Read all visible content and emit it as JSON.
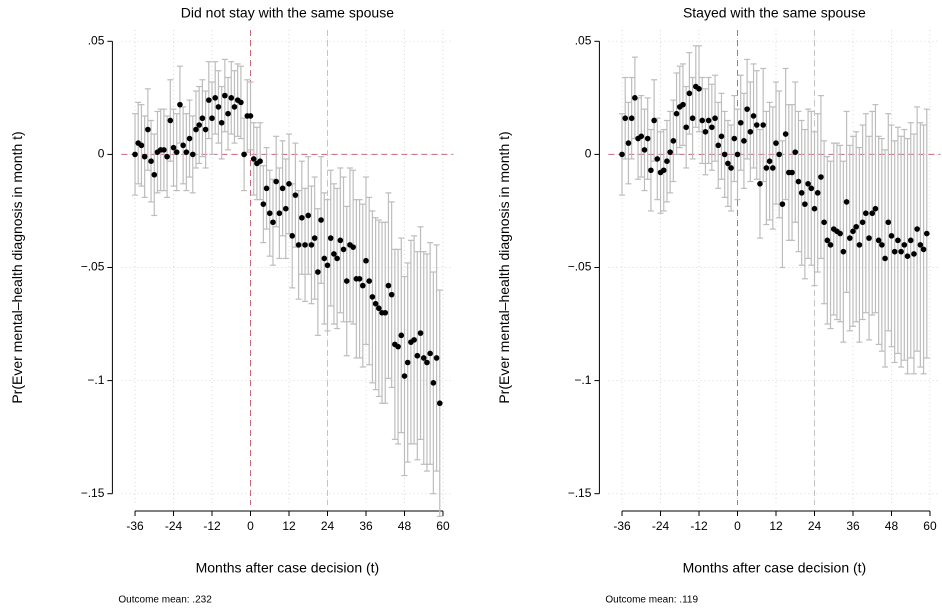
{
  "chart_data": [
    {
      "type": "errorbar",
      "title": "Did not stay with the same spouse",
      "xlabel": "Months after case decision (t)",
      "ylabel": "Pr(Ever mental–health diagnosis in month t)",
      "note": "Outcome mean: .232",
      "xlim": [
        -39,
        62
      ],
      "xticks": [
        -36,
        -24,
        -12,
        0,
        12,
        24,
        36,
        48,
        60
      ],
      "ylim": [
        -0.155,
        0.055
      ],
      "yticks": [
        {
          "value": 0.05,
          "label": ".05"
        },
        0,
        {
          "value": -0.05,
          "label": "−.05"
        },
        {
          "value": -0.1,
          "label": "−.1"
        },
        {
          "value": -0.15,
          "label": "−.15"
        }
      ],
      "grid": true,
      "color": "#000000",
      "error_color": "#bdbdbd",
      "ref_lines": [
        {
          "axis": "x",
          "value": 0,
          "color": "#c8687a"
        },
        {
          "axis": "y",
          "value": 0,
          "color": "#c8687a"
        },
        {
          "axis": "x",
          "value": 24,
          "color": "#c4c4c4"
        }
      ],
      "x": [
        -36,
        -35,
        -34,
        -33,
        -32,
        -31,
        -30,
        -29,
        -28,
        -27,
        -26,
        -25,
        -24,
        -23,
        -22,
        -21,
        -20,
        -19,
        -18,
        -17,
        -16,
        -15,
        -14,
        -13,
        -12,
        -11,
        -10,
        -9,
        -8,
        -7,
        -6,
        -5,
        -4,
        -3,
        -2,
        -1,
        0,
        1,
        2,
        3,
        4,
        5,
        6,
        7,
        8,
        9,
        10,
        11,
        12,
        13,
        14,
        15,
        16,
        17,
        18,
        19,
        20,
        21,
        22,
        23,
        24,
        25,
        26,
        27,
        28,
        29,
        30,
        31,
        32,
        33,
        34,
        35,
        36,
        37,
        38,
        39,
        40,
        41,
        42,
        43,
        44,
        45,
        46,
        47,
        48,
        49,
        50,
        51,
        52,
        53,
        54,
        55,
        56,
        57,
        58,
        59
      ],
      "values": [
        0,
        0.005,
        0.004,
        -0.001,
        0.011,
        -0.003,
        -0.009,
        0.001,
        0.002,
        0.002,
        -0.001,
        0.015,
        0.003,
        0.001,
        0.022,
        0.004,
        0.001,
        0.007,
        0,
        0.011,
        0.013,
        0.016,
        0.011,
        0.024,
        0.016,
        0.025,
        0.021,
        0.014,
        0.026,
        0.018,
        0.025,
        0.021,
        0.024,
        0.023,
        0,
        0.017,
        0.017,
        -0.002,
        -0.004,
        -0.003,
        -0.022,
        -0.015,
        -0.026,
        -0.03,
        -0.012,
        -0.026,
        -0.015,
        -0.024,
        -0.013,
        -0.036,
        -0.018,
        -0.04,
        -0.028,
        -0.04,
        -0.027,
        -0.04,
        -0.037,
        -0.052,
        -0.029,
        -0.046,
        -0.049,
        -0.037,
        -0.044,
        -0.046,
        -0.038,
        -0.042,
        -0.056,
        -0.04,
        -0.041,
        -0.055,
        -0.055,
        -0.058,
        -0.047,
        -0.056,
        -0.063,
        -0.066,
        -0.068,
        -0.07,
        -0.07,
        -0.058,
        -0.062,
        -0.084,
        -0.085,
        -0.08,
        -0.098,
        -0.092,
        -0.083,
        -0.082,
        -0.089,
        -0.079,
        -0.09,
        -0.092,
        -0.088,
        -0.101,
        -0.09,
        -0.11
      ],
      "errors": [
        0.018,
        0.018,
        0.018,
        0.018,
        0.018,
        0.018,
        0.018,
        0.018,
        0.018,
        0.018,
        0.018,
        0.018,
        0.017,
        0.017,
        0.017,
        0.017,
        0.017,
        0.017,
        0.017,
        0.017,
        0.017,
        0.017,
        0.017,
        0.017,
        0.016,
        0.016,
        0.016,
        0.016,
        0.016,
        0.016,
        0.016,
        0.016,
        0.016,
        0.016,
        0.016,
        0.016,
        0.015,
        0.016,
        0.016,
        0.017,
        0.017,
        0.018,
        0.019,
        0.019,
        0.02,
        0.02,
        0.021,
        0.022,
        0.022,
        0.023,
        0.023,
        0.024,
        0.025,
        0.025,
        0.026,
        0.026,
        0.027,
        0.028,
        0.028,
        0.029,
        0.029,
        0.03,
        0.031,
        0.031,
        0.032,
        0.032,
        0.033,
        0.034,
        0.034,
        0.035,
        0.035,
        0.036,
        0.037,
        0.037,
        0.038,
        0.038,
        0.039,
        0.04,
        0.04,
        0.041,
        0.041,
        0.042,
        0.043,
        0.043,
        0.044,
        0.044,
        0.045,
        0.046,
        0.046,
        0.047,
        0.047,
        0.048,
        0.049,
        0.049,
        0.05,
        0.05
      ]
    },
    {
      "type": "errorbar",
      "title": "Stayed with the same spouse",
      "xlabel": "Months after case decision (t)",
      "ylabel": "Pr(Ever mental–health diagnosis in month t)",
      "note": "Outcome mean: .119",
      "xlim": [
        -39,
        62
      ],
      "xticks": [
        -36,
        -24,
        -12,
        0,
        12,
        24,
        36,
        48,
        60
      ],
      "ylim": [
        -0.155,
        0.055
      ],
      "yticks": [
        {
          "value": 0.05,
          "label": ".05"
        },
        0,
        {
          "value": -0.05,
          "label": "−.05"
        },
        {
          "value": -0.1,
          "label": "−.1"
        },
        {
          "value": -0.15,
          "label": "−.15"
        }
      ],
      "grid": true,
      "color": "#000000",
      "error_color": "#bdbdbd",
      "ref_lines": [
        {
          "axis": "x",
          "value": 0,
          "color": "#c8687a"
        },
        {
          "axis": "y",
          "value": 0,
          "color": "#c8687a"
        },
        {
          "axis": "x",
          "value": 24,
          "color": "#c4c4c4"
        }
      ],
      "x": [
        -36,
        -35,
        -34,
        -33,
        -32,
        -31,
        -30,
        -29,
        -28,
        -27,
        -26,
        -25,
        -24,
        -23,
        -22,
        -21,
        -20,
        -19,
        -18,
        -17,
        -16,
        -15,
        -14,
        -13,
        -12,
        -11,
        -10,
        -9,
        -8,
        -7,
        -6,
        -5,
        -4,
        -3,
        -2,
        -1,
        0,
        1,
        2,
        3,
        4,
        5,
        6,
        7,
        8,
        9,
        10,
        11,
        12,
        13,
        14,
        15,
        16,
        17,
        18,
        19,
        20,
        21,
        22,
        23,
        24,
        25,
        26,
        27,
        28,
        29,
        30,
        31,
        32,
        33,
        34,
        35,
        36,
        37,
        38,
        39,
        40,
        41,
        42,
        43,
        44,
        45,
        46,
        47,
        48,
        49,
        50,
        51,
        52,
        53,
        54,
        55,
        56,
        57,
        58,
        59
      ],
      "values": [
        0,
        0.016,
        0.005,
        0.016,
        0.025,
        0.007,
        0.008,
        0.002,
        0.007,
        -0.007,
        0.015,
        -0.002,
        -0.008,
        -0.007,
        -0.003,
        0.001,
        0.006,
        0.018,
        0.021,
        0.022,
        0.012,
        0.027,
        0.016,
        0.03,
        0.029,
        0.015,
        0.01,
        0.015,
        0.012,
        0.016,
        0.004,
        0.008,
        0,
        -0.004,
        -0.006,
        0.007,
        0,
        0.014,
        0.006,
        0.02,
        0.01,
        0.017,
        0.013,
        -0.013,
        0.013,
        -0.006,
        -0.003,
        -0.006,
        0.005,
        0,
        -0.022,
        0.009,
        -0.008,
        -0.008,
        0.001,
        -0.012,
        -0.017,
        -0.022,
        -0.013,
        -0.015,
        -0.024,
        -0.017,
        -0.01,
        -0.03,
        -0.038,
        -0.04,
        -0.033,
        -0.034,
        -0.035,
        -0.043,
        -0.021,
        -0.037,
        -0.034,
        -0.032,
        -0.04,
        -0.03,
        -0.026,
        -0.037,
        -0.026,
        -0.024,
        -0.038,
        -0.04,
        -0.046,
        -0.03,
        -0.036,
        -0.043,
        -0.038,
        -0.043,
        -0.04,
        -0.045,
        -0.038,
        -0.044,
        -0.033,
        -0.04,
        -0.042,
        -0.035
      ],
      "errors": [
        0.018,
        0.018,
        0.018,
        0.018,
        0.018,
        0.018,
        0.018,
        0.018,
        0.018,
        0.018,
        0.018,
        0.018,
        0.018,
        0.018,
        0.018,
        0.018,
        0.018,
        0.018,
        0.018,
        0.018,
        0.018,
        0.018,
        0.018,
        0.018,
        0.019,
        0.019,
        0.019,
        0.019,
        0.019,
        0.019,
        0.019,
        0.019,
        0.019,
        0.019,
        0.019,
        0.019,
        0.02,
        0.021,
        0.021,
        0.022,
        0.022,
        0.023,
        0.024,
        0.024,
        0.025,
        0.025,
        0.026,
        0.027,
        0.027,
        0.028,
        0.028,
        0.029,
        0.03,
        0.03,
        0.031,
        0.031,
        0.032,
        0.033,
        0.033,
        0.034,
        0.034,
        0.035,
        0.036,
        0.036,
        0.037,
        0.037,
        0.038,
        0.039,
        0.039,
        0.04,
        0.04,
        0.041,
        0.042,
        0.042,
        0.043,
        0.043,
        0.044,
        0.045,
        0.045,
        0.046,
        0.046,
        0.047,
        0.048,
        0.048,
        0.049,
        0.049,
        0.05,
        0.051,
        0.051,
        0.052,
        0.052,
        0.053,
        0.054,
        0.054,
        0.055,
        0.055
      ]
    }
  ]
}
